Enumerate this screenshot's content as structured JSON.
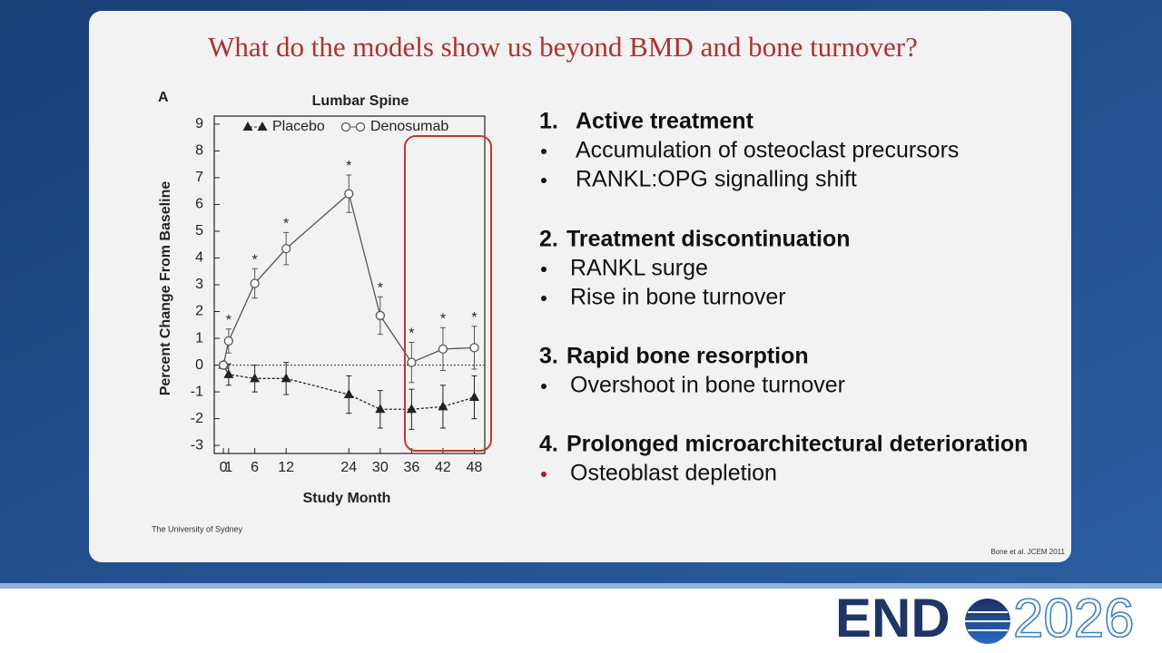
{
  "slide_title": "What do the models show us beyond BMD and bone turnover?",
  "chart_data": {
    "type": "line",
    "panel_label": "A",
    "title": "Lumbar Spine",
    "x_label": "Study Month",
    "y_label": "Percent Change From Baseline",
    "x": [
      0,
      1,
      6,
      12,
      24,
      30,
      36,
      42,
      48
    ],
    "xlim": [
      -1.75,
      50
    ],
    "xticks": [
      0,
      1,
      6,
      12,
      24,
      30,
      36,
      42,
      48
    ],
    "ylim": [
      -3.3,
      9.3
    ],
    "yticks": [
      -3,
      -2,
      -1,
      0,
      1,
      2,
      3,
      4,
      5,
      6,
      7,
      8,
      9
    ],
    "zero_line": true,
    "series": [
      {
        "name": "Placebo",
        "color": "#222222",
        "marker": "triangle",
        "dashed": true,
        "values": [
          0,
          -0.35,
          -0.5,
          -0.5,
          -1.1,
          -1.65,
          -1.65,
          -1.55,
          -1.2
        ],
        "errors": [
          null,
          0.4,
          0.5,
          0.6,
          0.7,
          0.7,
          0.75,
          0.8,
          0.8
        ]
      },
      {
        "name": "Denosumab",
        "color": "#555555",
        "marker": "circle",
        "dashed": false,
        "values": [
          0,
          0.9,
          3.05,
          4.35,
          6.4,
          1.85,
          0.1,
          0.6,
          0.65
        ],
        "errors": [
          null,
          0.45,
          0.55,
          0.6,
          0.7,
          0.7,
          0.75,
          0.8,
          0.8
        ],
        "significance_labels": [
          null,
          "*",
          "*",
          "*",
          "*",
          "*",
          "*",
          "*",
          "*"
        ]
      }
    ]
  },
  "sections": [
    {
      "number": "1.",
      "heading": "Active treatment",
      "bullets": [
        "Accumulation of osteoclast precursors",
        "RANKL:OPG signalling shift"
      ]
    },
    {
      "number": "2.",
      "heading": "Treatment discontinuation",
      "bullets": [
        "RANKL surge",
        "Rise in bone turnover"
      ]
    },
    {
      "number": "3.",
      "heading": "Rapid bone resorption",
      "bullets": [
        "Overshoot in bone turnover"
      ]
    },
    {
      "number": "4.",
      "heading": "Prolonged microarchitectural deterioration",
      "bullets": [
        "Osteoblast depletion"
      ]
    }
  ],
  "footer_left": "The University of Sydney",
  "citation": "Bone et al. JCEM 2011",
  "logo": {
    "word": "END",
    "year": "2026"
  }
}
